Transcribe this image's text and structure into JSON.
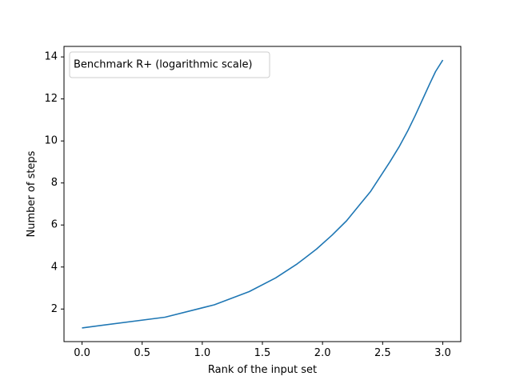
{
  "chart_data": {
    "type": "line",
    "xlabel": "Rank of the input set",
    "ylabel": "Number of steps",
    "xlim": [
      -0.15,
      3.15
    ],
    "ylim": [
      0.45,
      14.5
    ],
    "xticks": [
      0.0,
      0.5,
      1.0,
      1.5,
      2.0,
      2.5,
      3.0
    ],
    "xtick_labels": [
      "0.0",
      "0.5",
      "1.0",
      "1.5",
      "2.0",
      "2.5",
      "3.0"
    ],
    "yticks": [
      2,
      4,
      6,
      8,
      10,
      12,
      14
    ],
    "ytick_labels": [
      "2",
      "4",
      "6",
      "8",
      "10",
      "12",
      "14"
    ],
    "grid": false,
    "legend_position": "top-left",
    "series": [
      {
        "name": "Benchmark R+ (logarithmic scale)",
        "color": "#1f77b4",
        "x": [
          0.0,
          0.69,
          1.1,
          1.39,
          1.61,
          1.79,
          1.95,
          2.08,
          2.2,
          2.3,
          2.4,
          2.48,
          2.56,
          2.64,
          2.71,
          2.77,
          2.83,
          2.89,
          2.94,
          3.0
        ],
        "y": [
          1.1,
          1.61,
          2.2,
          2.83,
          3.48,
          4.15,
          4.85,
          5.52,
          6.2,
          6.9,
          7.6,
          8.3,
          9.0,
          9.75,
          10.5,
          11.2,
          11.95,
          12.7,
          13.3,
          13.85
        ]
      }
    ]
  }
}
